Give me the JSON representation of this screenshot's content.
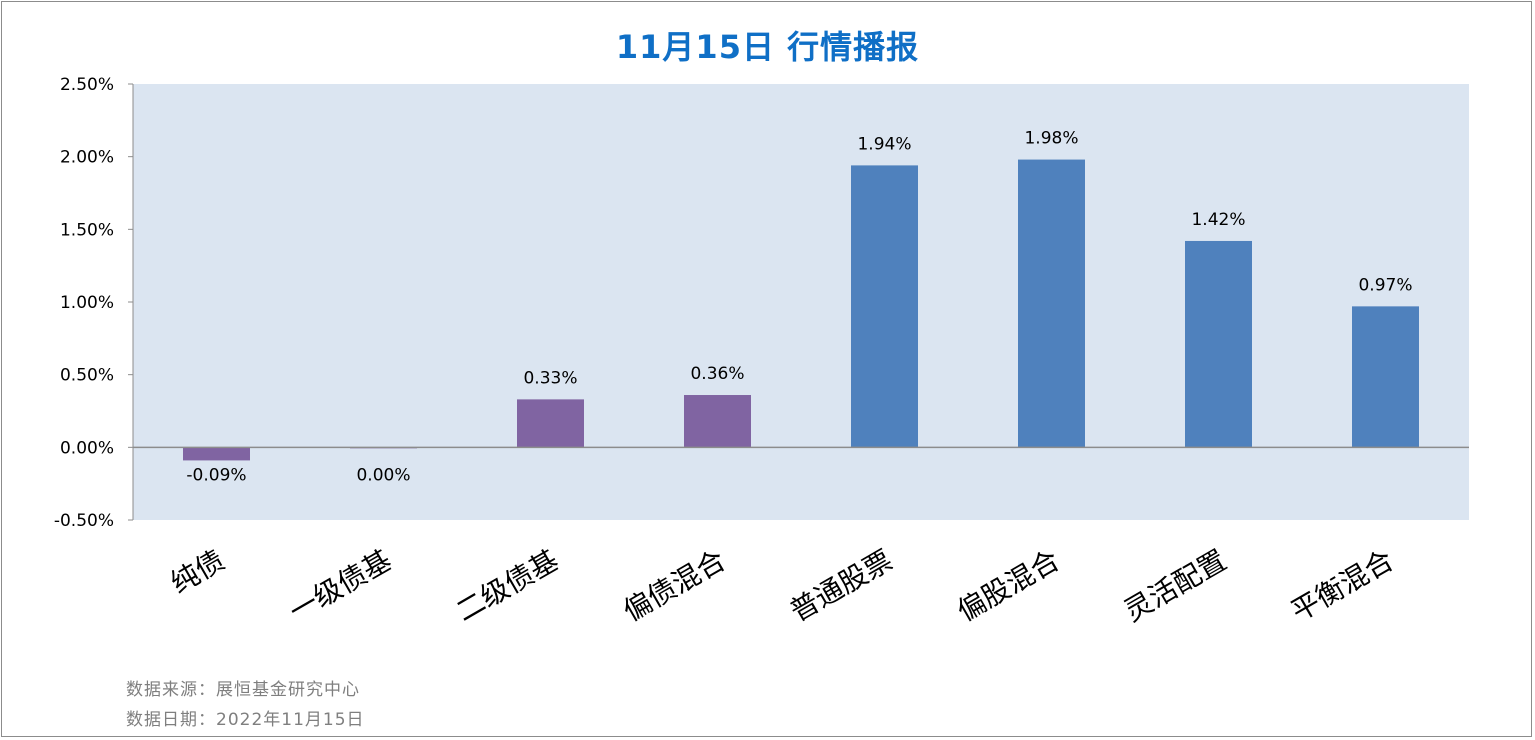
{
  "title": "11月15日  行情播报",
  "footer": {
    "source": "数据来源：展恒基金研究中心",
    "date": "数据日期：2022年11月15日"
  },
  "colors": {
    "plot_bg": "#dbe5f1",
    "bond_series": "#8064a2",
    "equity_series": "#4f81bd",
    "title": "#0f6fc6"
  },
  "chart_data": {
    "type": "bar",
    "title": "11月15日  行情播报",
    "categories": [
      "纯债",
      "一级债基",
      "二级债基",
      "偏债混合",
      "普通股票",
      "偏股混合",
      "灵活配置",
      "平衡混合"
    ],
    "values": [
      -0.09,
      0.0,
      0.33,
      0.36,
      1.94,
      1.98,
      1.42,
      0.97
    ],
    "value_labels": [
      "-0.09%",
      "0.00%",
      "0.33%",
      "0.36%",
      "1.94%",
      "1.98%",
      "1.42%",
      "0.97%"
    ],
    "bar_colors": [
      "#8064a2",
      "#8064a2",
      "#8064a2",
      "#8064a2",
      "#4f81bd",
      "#4f81bd",
      "#4f81bd",
      "#4f81bd"
    ],
    "ylim": [
      -0.5,
      2.5
    ],
    "yticks": [
      2.5,
      2.0,
      1.5,
      1.0,
      0.5,
      0.0,
      -0.5
    ],
    "ytick_labels": [
      "2.50%",
      "2.00%",
      "1.50%",
      "1.00%",
      "0.50%",
      "0.00%",
      "-0.50%"
    ],
    "xlabel": "",
    "ylabel": "",
    "grid": false,
    "legend": "none"
  }
}
